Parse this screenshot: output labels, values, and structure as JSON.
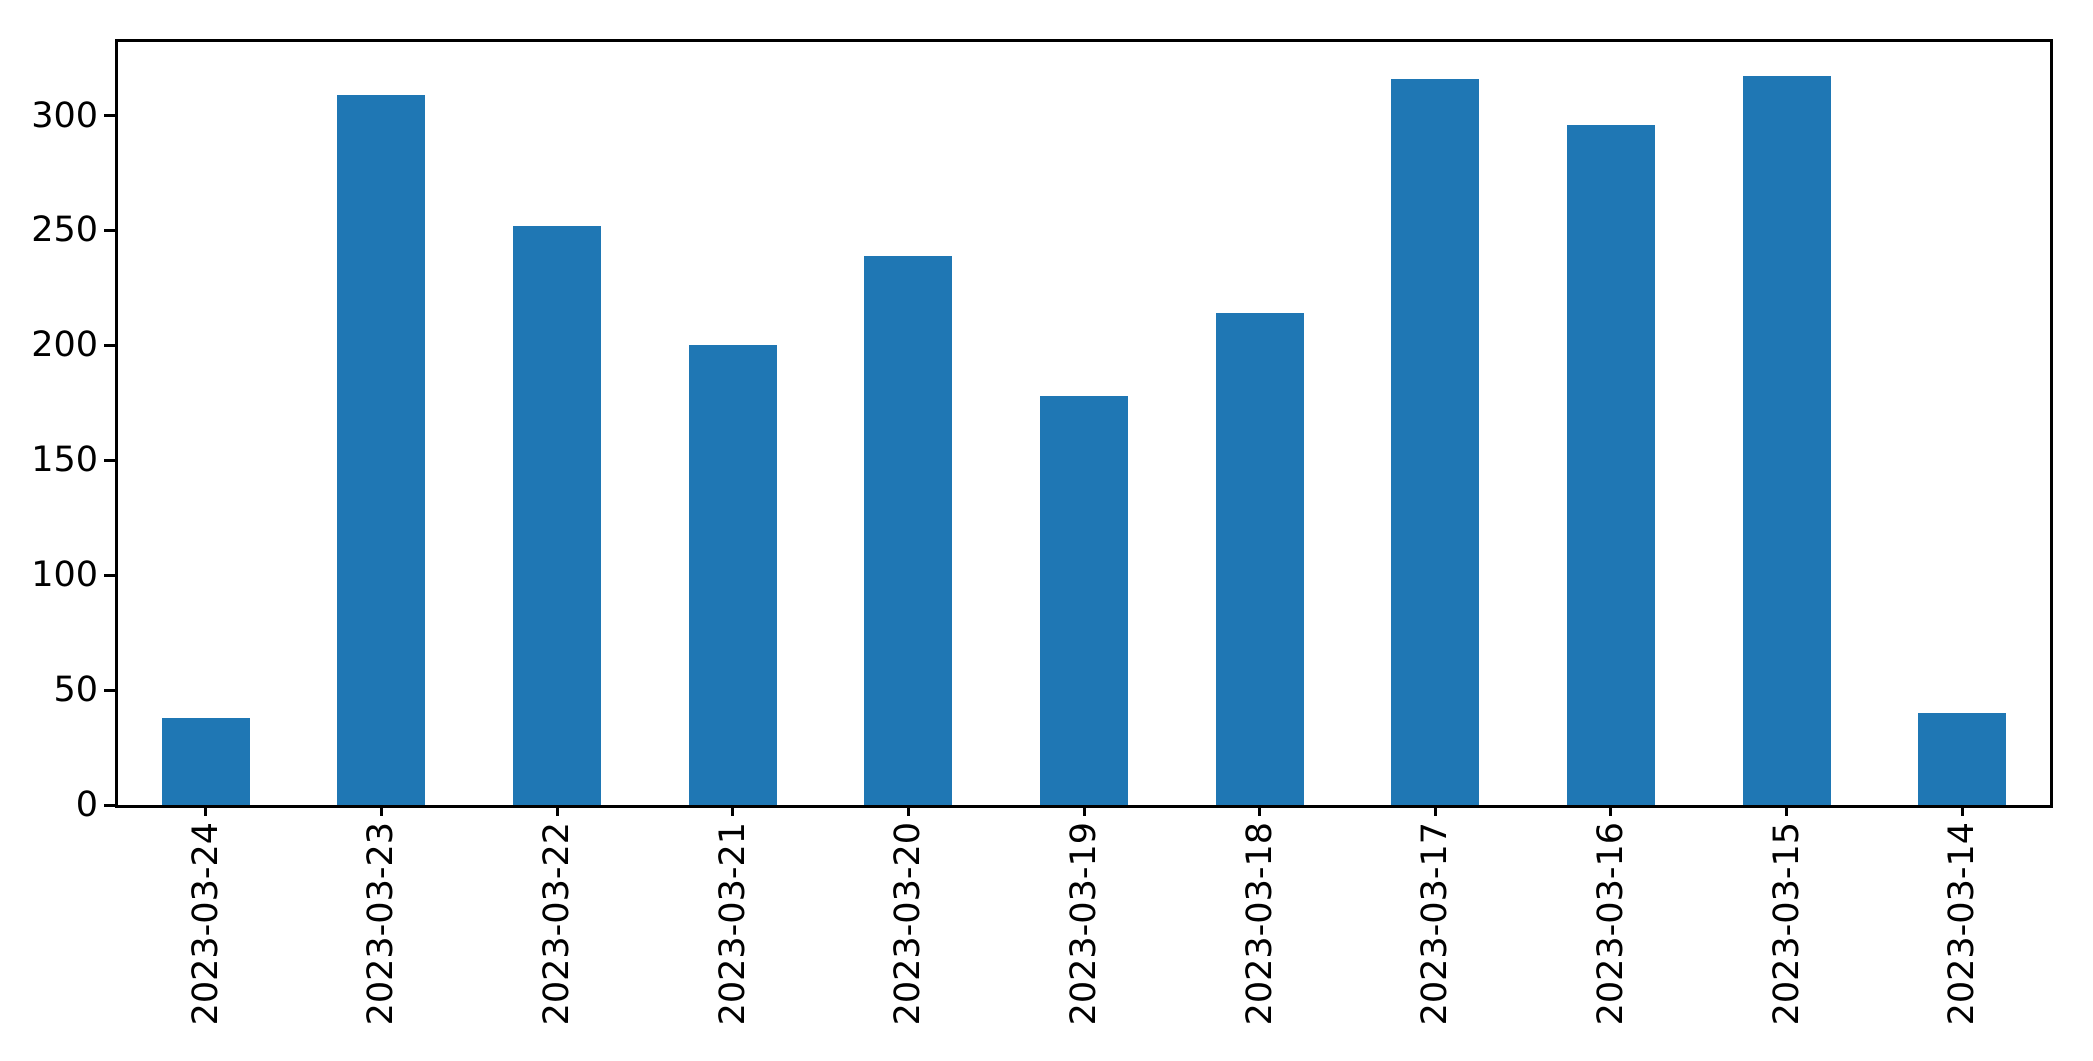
{
  "figure": {
    "background_color": "#ffffff",
    "axis_color": "#000000",
    "bar_color": "#1f77b4"
  },
  "chart_data": {
    "type": "bar",
    "title": "",
    "xlabel": "",
    "ylabel": "",
    "categories": [
      "2023-03-24",
      "2023-03-23",
      "2023-03-22",
      "2023-03-21",
      "2023-03-20",
      "2023-03-19",
      "2023-03-18",
      "2023-03-17",
      "2023-03-16",
      "2023-03-15",
      "2023-03-14"
    ],
    "values": [
      38,
      309,
      252,
      200,
      239,
      178,
      214,
      316,
      296,
      317,
      40
    ],
    "series_color": "#1f77b4",
    "ylim": [
      0,
      332
    ],
    "yticks": [
      0,
      50,
      100,
      150,
      200,
      250,
      300
    ],
    "xlim_units": [
      -0.5,
      10.5
    ],
    "bar_width_fraction": 0.5,
    "x_tick_rotation_deg": 90,
    "grid": false,
    "legend": null
  }
}
